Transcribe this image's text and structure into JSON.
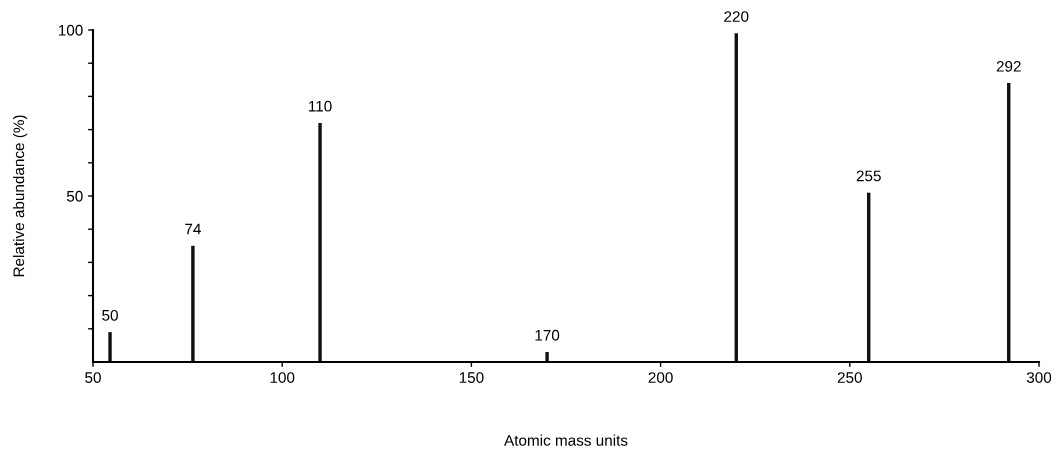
{
  "chart_data": {
    "type": "bar",
    "xlabel": "Atomic mass units",
    "ylabel": "Relative abundance (%)",
    "x": [
      54.5,
      76.4,
      110,
      170,
      220,
      255,
      292
    ],
    "values": [
      9,
      35,
      72,
      3,
      99,
      51,
      84
    ],
    "color": "#111111",
    "annotations": [
      {
        "text": "50",
        "x": 54.5,
        "y": 9
      },
      {
        "text": "74",
        "x": 76.4,
        "y": 35
      },
      {
        "text": "110",
        "x": 110,
        "y": 72
      },
      {
        "text": "170",
        "x": 170,
        "y": 3
      },
      {
        "text": "220",
        "x": 220,
        "y": 99
      },
      {
        "text": "255",
        "x": 255,
        "y": 51
      },
      {
        "text": "292",
        "x": 292,
        "y": 84
      }
    ],
    "xlim": [
      50,
      300
    ],
    "xticks": [
      50,
      100,
      150,
      200,
      250,
      300
    ],
    "ylim": [
      0,
      100
    ],
    "yticks": [
      {
        "value": 10,
        "label": null
      },
      {
        "value": 20,
        "label": null
      },
      {
        "value": 30,
        "label": null
      },
      {
        "value": 40,
        "label": null
      },
      50,
      {
        "value": 60,
        "label": null
      },
      {
        "value": 70,
        "label": null
      },
      {
        "value": 80,
        "label": null
      },
      {
        "value": 90,
        "label": null
      },
      100
    ],
    "grid": false,
    "legend": false
  }
}
